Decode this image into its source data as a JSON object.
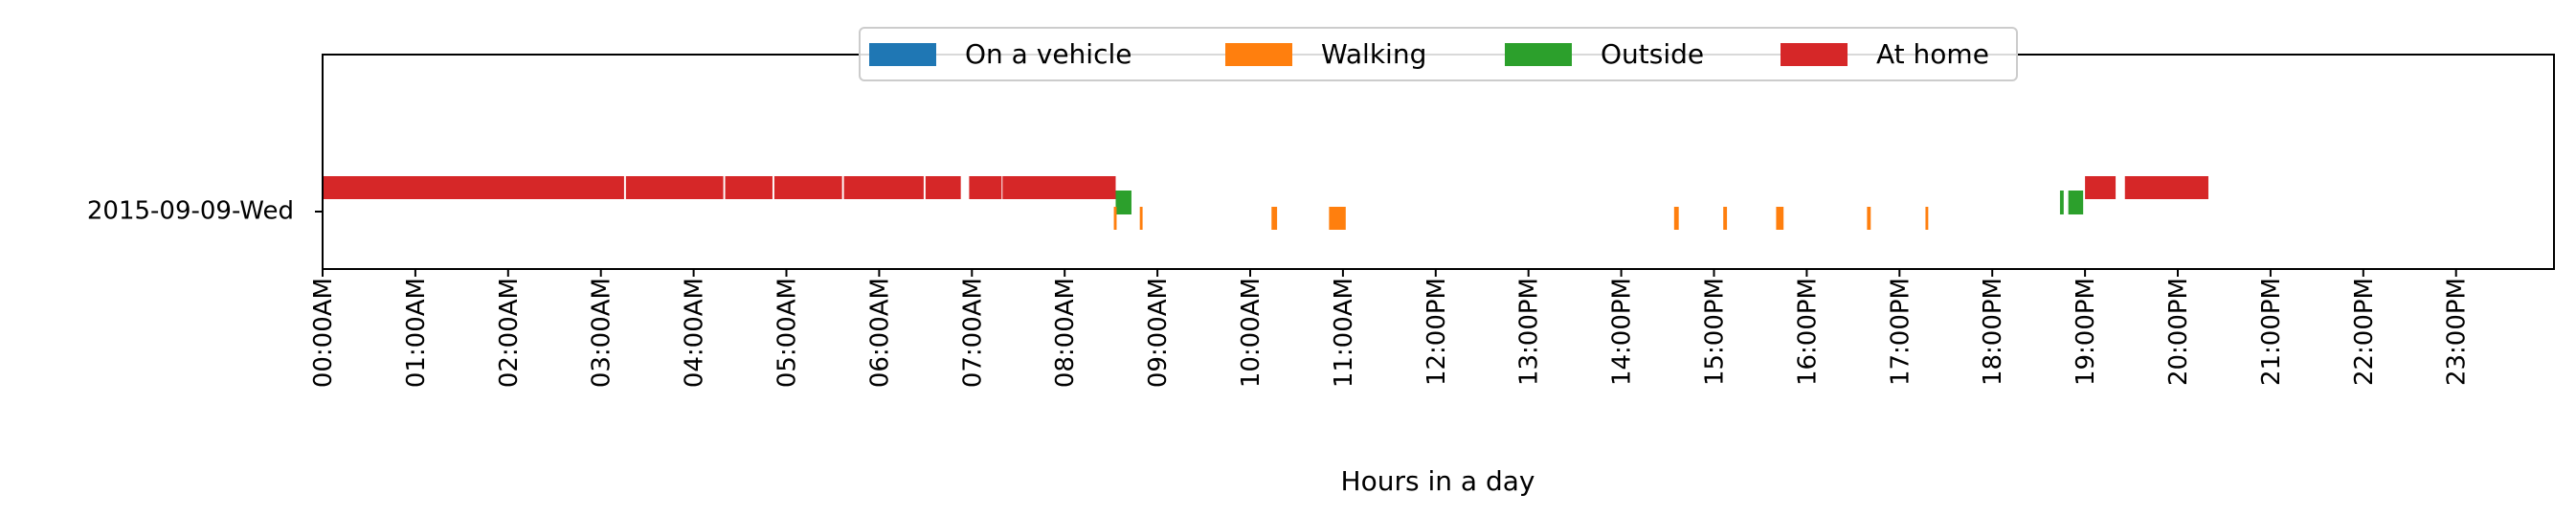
{
  "chart_data": {
    "type": "timeline",
    "xlabel": "Hours in a day",
    "xlim": [
      0,
      24
    ],
    "x_tick_labels": [
      "00:00AM",
      "01:00AM",
      "02:00AM",
      "03:00AM",
      "04:00AM",
      "05:00AM",
      "06:00AM",
      "07:00AM",
      "08:00AM",
      "09:00AM",
      "10:00AM",
      "11:00AM",
      "12:00PM",
      "13:00PM",
      "14:00PM",
      "15:00PM",
      "16:00PM",
      "17:00PM",
      "18:00PM",
      "19:00PM",
      "20:00PM",
      "21:00PM",
      "22:00PM",
      "23:00PM"
    ],
    "y_tick_labels": [
      "2015-09-09-Wed"
    ],
    "legend": {
      "position": "top-center",
      "entries": [
        {
          "name": "On a vehicle",
          "color": "#1f77b4"
        },
        {
          "name": "Walking",
          "color": "#ff7f0e"
        },
        {
          "name": "Outside",
          "color": "#2ca02c"
        },
        {
          "name": "At home",
          "color": "#d62728"
        }
      ]
    },
    "series": [
      {
        "name": "At home",
        "color": "#d62728",
        "level": "upper",
        "segments": [
          [
            0.0,
            3.25
          ],
          [
            3.27,
            4.32
          ],
          [
            4.34,
            4.85
          ],
          [
            4.87,
            5.6
          ],
          [
            5.62,
            6.48
          ],
          [
            6.5,
            6.88
          ],
          [
            6.97,
            7.32
          ],
          [
            7.33,
            8.55
          ],
          [
            19.0,
            19.33
          ],
          [
            19.43,
            20.33
          ]
        ]
      },
      {
        "name": "Outside",
        "color": "#2ca02c",
        "level": "middle",
        "segments": [
          [
            8.55,
            8.72
          ],
          [
            18.73,
            18.77
          ],
          [
            18.82,
            18.98
          ]
        ]
      },
      {
        "name": "Walking",
        "color": "#ff7f0e",
        "level": "lower",
        "segments": [
          [
            8.53,
            8.56
          ],
          [
            8.81,
            8.84
          ],
          [
            10.23,
            10.29
          ],
          [
            10.85,
            11.03
          ],
          [
            14.57,
            14.62
          ],
          [
            15.1,
            15.14
          ],
          [
            15.67,
            15.75
          ],
          [
            16.65,
            16.69
          ],
          [
            17.28,
            17.31
          ]
        ]
      },
      {
        "name": "On a vehicle",
        "color": "#1f77b4",
        "level": "upper",
        "segments": []
      }
    ]
  }
}
